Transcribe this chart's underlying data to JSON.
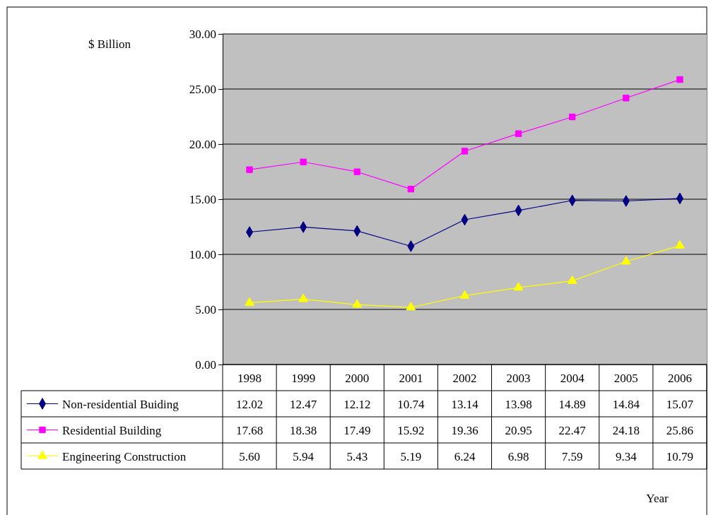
{
  "chart_data": {
    "type": "line",
    "ylabel": "$ Billion",
    "annotations": [
      "Year"
    ],
    "categories": [
      "1998",
      "1999",
      "2000",
      "2001",
      "2002",
      "2003",
      "2004",
      "2005",
      "2006"
    ],
    "ylim": [
      0,
      30
    ],
    "yticks": [
      {
        "value": 0,
        "label": "0.00"
      },
      {
        "value": 5,
        "label": "5.00"
      },
      {
        "value": 10,
        "label": "10.00"
      },
      {
        "value": 15,
        "label": "15.00"
      },
      {
        "value": 20,
        "label": "20.00"
      },
      {
        "value": 25,
        "label": "25.00"
      },
      {
        "value": 30,
        "label": "30.00"
      }
    ],
    "grid": "y",
    "legend": "bottom",
    "series": [
      {
        "name": "Non-residential Buiding",
        "color": "#000080",
        "marker": "diamond",
        "values": [
          12.02,
          12.47,
          12.12,
          10.74,
          13.14,
          13.98,
          14.89,
          14.84,
          15.07
        ],
        "value_labels": [
          "12.02",
          "12.47",
          "12.12",
          "10.74",
          "13.14",
          "13.98",
          "14.89",
          "14.84",
          "15.07"
        ]
      },
      {
        "name": "Residential Building",
        "color": "#ff00ff",
        "marker": "square",
        "values": [
          17.68,
          18.38,
          17.49,
          15.92,
          19.36,
          20.95,
          22.47,
          24.18,
          25.86
        ],
        "value_labels": [
          "17.68",
          "18.38",
          "17.49",
          "15.92",
          "19.36",
          "20.95",
          "22.47",
          "24.18",
          "25.86"
        ]
      },
      {
        "name": "Engineering Construction",
        "color": "#ffff00",
        "marker": "triangle",
        "values": [
          5.6,
          5.94,
          5.43,
          5.19,
          6.24,
          6.98,
          7.59,
          9.34,
          10.79
        ],
        "value_labels": [
          "5.60",
          "5.94",
          "5.43",
          "5.19",
          "6.24",
          "6.98",
          "7.59",
          "9.34",
          "10.79"
        ]
      }
    ]
  }
}
